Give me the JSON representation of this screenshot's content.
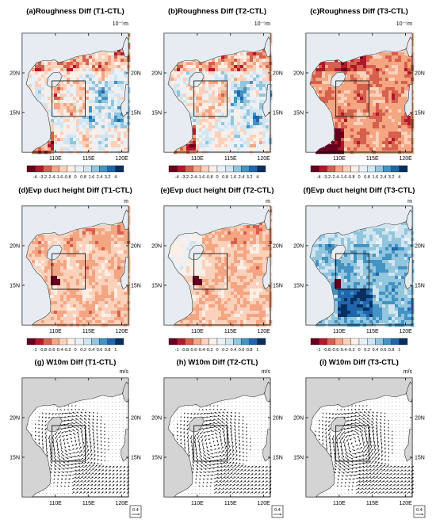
{
  "figure": {
    "rows": [
      {
        "id": "roughness",
        "units": "10⁻⁵m",
        "colorbar": {
          "levels": [
            "-4",
            "-3.2",
            "-2.4",
            "-1.6",
            "-0.8",
            "0",
            "0.8",
            "1.6",
            "2.4",
            "3.2",
            "4"
          ],
          "colors": [
            "#67001f",
            "#b2182b",
            "#d6604d",
            "#f4a582",
            "#fbd1bb",
            "#fdeee6",
            "#e8f1f8",
            "#d1e5f0",
            "#92c5de",
            "#4393c3",
            "#2166ac",
            "#053061"
          ]
        },
        "panels": [
          {
            "title": "(a)Roughness Diff (T1-CTL)",
            "tendency": "mixed"
          },
          {
            "title": "(b)Roughness Diff (T2-CTL)",
            "tendency": "mixed"
          },
          {
            "title": "(c)Roughness Diff (T3-CTL)",
            "tendency": "negative"
          }
        ]
      },
      {
        "id": "duct",
        "units": "m",
        "colorbar": {
          "levels": [
            "-1",
            "-0.8",
            "-0.6",
            "-0.4",
            "-0.2",
            "0",
            "0.2",
            "0.4",
            "0.6",
            "0.8",
            "1"
          ],
          "colors": [
            "#67001f",
            "#b2182b",
            "#d6604d",
            "#f4a582",
            "#fbd1bb",
            "#fdeee6",
            "#e8f1f8",
            "#d1e5f0",
            "#92c5de",
            "#4393c3",
            "#2166ac",
            "#053061"
          ]
        },
        "panels": [
          {
            "title": "(d)Evp duct height Diff (T1-CTL)",
            "tendency": "negative"
          },
          {
            "title": "(e)Evp duct height Diff (T2-CTL)",
            "tendency": "negative"
          },
          {
            "title": "(f)Evp duct height Diff (T3-CTL)",
            "tendency": "positive"
          }
        ]
      },
      {
        "id": "wind",
        "units": "m/s",
        "ref_vector": "0.4",
        "panels": [
          {
            "title": "(g) W10m Diff (T1-CTL)"
          },
          {
            "title": "(h) W10m Diff (T2-CTL)"
          },
          {
            "title": "(i) W10m Diff (T3-CTL)"
          }
        ]
      }
    ],
    "axes": {
      "x_ticks": [
        "110E",
        "115E",
        "120E"
      ],
      "y_ticks": [
        "20N",
        "15N"
      ]
    },
    "colors": {
      "land": "#d4d4d4",
      "coast": "#333333",
      "box": "#000000"
    }
  },
  "chart_data": {
    "type": "heatmap",
    "description_units": {
      "roughness": "10⁻⁵m",
      "duct": "m",
      "wind": "m/s"
    },
    "xlim": [
      105,
      121
    ],
    "ylim": [
      10,
      25
    ],
    "x_ticks": [
      110,
      115,
      120
    ],
    "y_ticks": [
      15,
      20
    ],
    "box": {
      "lon": [
        109.5,
        114.5
      ],
      "lat": [
        14.5,
        19.0
      ]
    },
    "roughness_levels": [
      -4,
      -3.2,
      -2.4,
      -1.6,
      -0.8,
      0,
      0.8,
      1.6,
      2.4,
      3.2,
      4
    ],
    "duct_levels": [
      -1,
      -0.8,
      -0.6,
      -0.4,
      -0.2,
      0,
      0.2,
      0.4,
      0.6,
      0.8,
      1
    ],
    "wind_reference_vector": 0.4
  }
}
